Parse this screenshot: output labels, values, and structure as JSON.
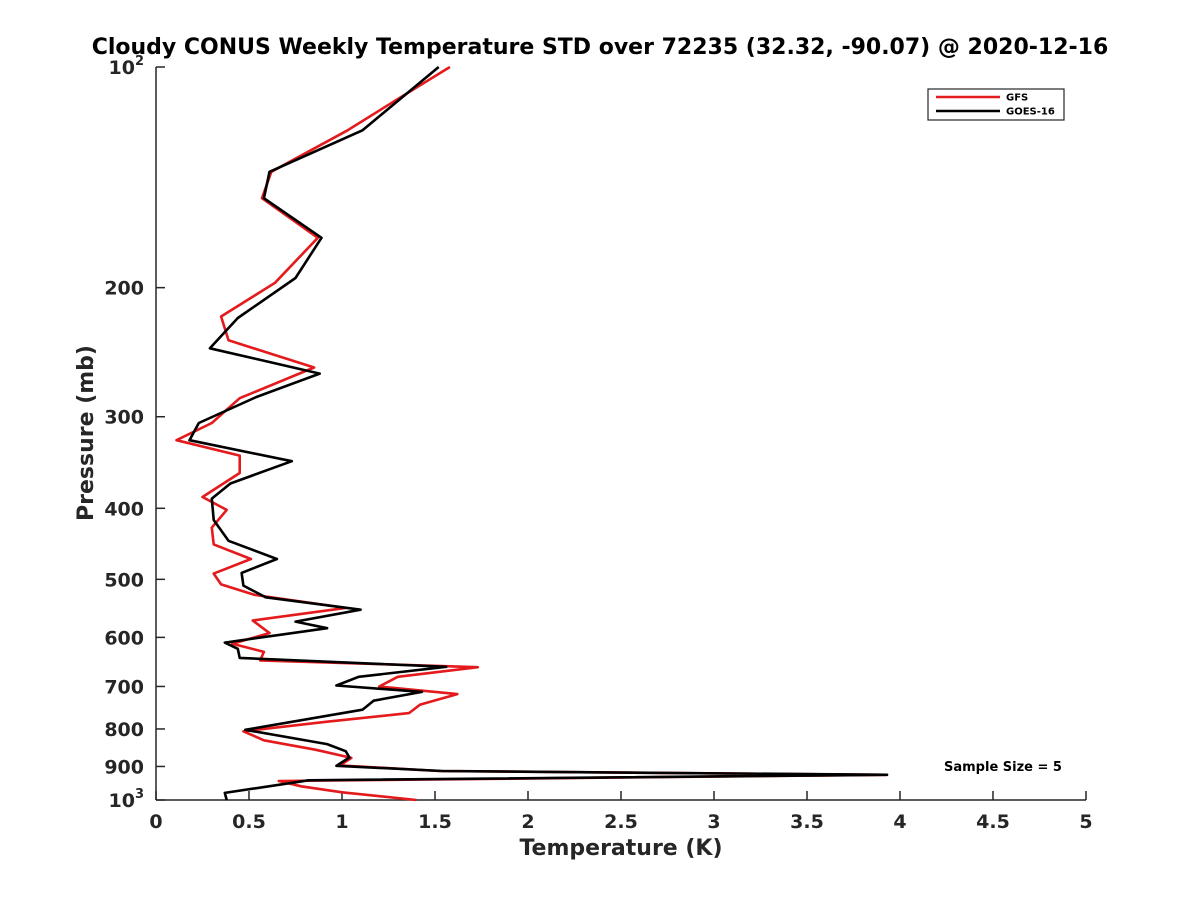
{
  "chart_data": {
    "type": "line",
    "title": "Cloudy CONUS Weekly Temperature STD over 72235 (32.32, -90.07) @ 2020-12-16",
    "xlabel": "Temperature (K)",
    "ylabel": "Pressure (mb)",
    "xlim": [
      0,
      5
    ],
    "ylim": [
      100,
      1000
    ],
    "yscale": "log",
    "y_reversed": true,
    "grid": false,
    "legend_position": "top-right",
    "x_ticks": [
      "0",
      "0.5",
      "1",
      "1.5",
      "2",
      "2.5",
      "3",
      "3.5",
      "4",
      "4.5",
      "5"
    ],
    "y_ticks": [
      {
        "value": 100,
        "base": "10",
        "exp": "2"
      },
      {
        "value": 200,
        "label": "200"
      },
      {
        "value": 300,
        "label": "300"
      },
      {
        "value": 400,
        "label": "400"
      },
      {
        "value": 500,
        "label": "500"
      },
      {
        "value": 600,
        "label": "600"
      },
      {
        "value": 700,
        "label": "700"
      },
      {
        "value": 800,
        "label": "800"
      },
      {
        "value": 900,
        "label": "900"
      },
      {
        "value": 1000,
        "base": "10",
        "exp": "3"
      }
    ],
    "annotation": "Sample Size = 5",
    "series": [
      {
        "name": "GFS",
        "color": "#e41a1c",
        "points": [
          [
            1.58,
            100
          ],
          [
            1.29,
            111
          ],
          [
            1.03,
            122
          ],
          [
            0.62,
            139
          ],
          [
            0.57,
            151
          ],
          [
            0.87,
            171
          ],
          [
            0.64,
            197
          ],
          [
            0.35,
            219
          ],
          [
            0.39,
            236
          ],
          [
            0.85,
            257
          ],
          [
            0.45,
            283
          ],
          [
            0.3,
            306
          ],
          [
            0.11,
            323
          ],
          [
            0.45,
            339
          ],
          [
            0.45,
            358
          ],
          [
            0.25,
            386
          ],
          [
            0.38,
            402
          ],
          [
            0.3,
            425
          ],
          [
            0.31,
            448
          ],
          [
            0.51,
            469
          ],
          [
            0.31,
            491
          ],
          [
            0.35,
            508
          ],
          [
            0.53,
            525
          ],
          [
            1.02,
            547
          ],
          [
            0.52,
            569
          ],
          [
            0.61,
            592
          ],
          [
            0.41,
            612
          ],
          [
            0.58,
            628
          ],
          [
            0.56,
            645
          ],
          [
            1.73,
            659
          ],
          [
            1.3,
            679
          ],
          [
            1.2,
            700
          ],
          [
            1.62,
            717
          ],
          [
            1.42,
            741
          ],
          [
            1.36,
            761
          ],
          [
            0.92,
            782
          ],
          [
            0.47,
            806
          ],
          [
            0.58,
            829
          ],
          [
            0.86,
            854
          ],
          [
            1.05,
            876
          ],
          [
            0.99,
            897
          ],
          [
            1.52,
            913
          ],
          [
            3.93,
            924
          ],
          [
            0.66,
            942
          ],
          [
            0.78,
            958
          ],
          [
            1.0,
            976
          ],
          [
            1.4,
            1000
          ]
        ]
      },
      {
        "name": "GOES-16",
        "color": "#000000",
        "points": [
          [
            1.52,
            100
          ],
          [
            1.11,
            122
          ],
          [
            0.61,
            139
          ],
          [
            0.58,
            151
          ],
          [
            0.89,
            171
          ],
          [
            0.75,
            194
          ],
          [
            0.44,
            220
          ],
          [
            0.29,
            242
          ],
          [
            0.88,
            262
          ],
          [
            0.54,
            282
          ],
          [
            0.23,
            306
          ],
          [
            0.18,
            323
          ],
          [
            0.73,
            345
          ],
          [
            0.4,
            370
          ],
          [
            0.3,
            388
          ],
          [
            0.31,
            415
          ],
          [
            0.39,
            443
          ],
          [
            0.65,
            469
          ],
          [
            0.46,
            490
          ],
          [
            0.47,
            510
          ],
          [
            0.59,
            529
          ],
          [
            1.1,
            550
          ],
          [
            0.75,
            571
          ],
          [
            0.92,
            583
          ],
          [
            0.37,
            610
          ],
          [
            0.44,
            622
          ],
          [
            0.45,
            640
          ],
          [
            1.56,
            658
          ],
          [
            1.09,
            679
          ],
          [
            0.97,
            698
          ],
          [
            1.43,
            712
          ],
          [
            1.17,
            732
          ],
          [
            1.11,
            753
          ],
          [
            0.48,
            802
          ],
          [
            0.92,
            839
          ],
          [
            1.02,
            858
          ],
          [
            1.04,
            875
          ],
          [
            0.97,
            898
          ],
          [
            1.54,
            913
          ],
          [
            3.93,
            924
          ],
          [
            0.82,
            940
          ],
          [
            0.37,
            978
          ],
          [
            0.38,
            1000
          ]
        ]
      }
    ]
  }
}
